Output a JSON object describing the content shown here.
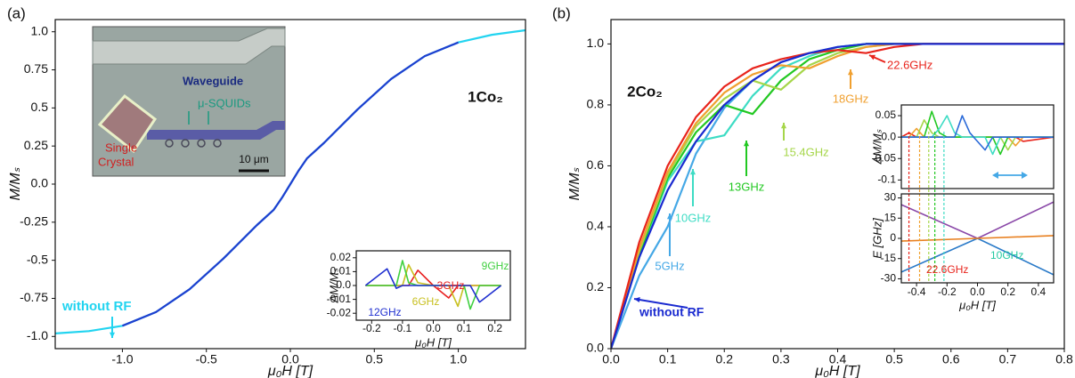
{
  "photo": {
    "labels": [
      "Waveguide",
      "μ-SQUIDs",
      "Single",
      "Crystal"
    ],
    "scale_bar": "10 μm"
  },
  "chart_data": [
    {
      "type": "line",
      "panel_label": "(a)",
      "annotations": [
        "1Co₂"
      ],
      "xlabel": "μ₀H [T]",
      "ylabel": "M/Mₛ",
      "xlim": [
        -1.4,
        1.4
      ],
      "ylim": [
        -1.08,
        1.08
      ],
      "xticks": [
        {
          "value": -1,
          "label": "-1.0"
        },
        -0.5,
        {
          "value": 0,
          "label": "0.0"
        },
        0.5,
        {
          "value": 1,
          "label": "1.0"
        }
      ],
      "yticks": [
        {
          "value": 1,
          "label": "1.0"
        },
        0.75,
        0.5,
        0.25,
        {
          "value": 0,
          "label": "0.0"
        },
        -0.25,
        -0.5,
        -0.75,
        {
          "value": -1,
          "label": "-1.0"
        }
      ],
      "series": [
        {
          "name": "without RF",
          "color": "#22d4f0",
          "x": [
            -1.4,
            -1.2,
            -1.0,
            -0.8,
            -0.6,
            -0.4,
            -0.2,
            -0.1,
            -0.05,
            0,
            0.05,
            0.1,
            0.2,
            0.4,
            0.6,
            0.8,
            1.0,
            1.2,
            1.4
          ],
          "values": [
            -0.98,
            -0.965,
            -0.93,
            -0.84,
            -0.69,
            -0.49,
            -0.27,
            -0.17,
            -0.09,
            0,
            0.09,
            0.17,
            0.27,
            0.49,
            0.69,
            0.84,
            0.93,
            0.98,
            1.01
          ]
        },
        {
          "color": "#1f3fcf",
          "x": [
            -1.0,
            -0.8,
            -0.6,
            -0.4,
            -0.2,
            -0.1,
            -0.05,
            0,
            0.05,
            0.1,
            0.2,
            0.4,
            0.6,
            0.8,
            1.0
          ],
          "values": [
            -0.93,
            -0.84,
            -0.69,
            -0.49,
            -0.27,
            -0.17,
            -0.09,
            0,
            0.09,
            0.17,
            0.27,
            0.49,
            0.69,
            0.84,
            0.93
          ]
        }
      ]
    },
    {
      "type": "line",
      "xlabel": "μ₀H [T]",
      "ylabel": "ΔM/Mₛ",
      "xlim": [
        -0.25,
        0.25
      ],
      "ylim": [
        -0.025,
        0.025
      ],
      "xticks": [
        -0.2,
        -0.1,
        {
          "value": 0,
          "label": "0.0"
        },
        0.1,
        0.2
      ],
      "yticks": [
        0.02,
        0.01,
        {
          "value": 0,
          "label": "0.0"
        },
        -0.01,
        -0.02
      ],
      "x": [
        -0.22,
        -0.15,
        -0.12,
        -0.1,
        -0.08,
        -0.05,
        0,
        0.05,
        0.08,
        0.1,
        0.12,
        0.15,
        0.22
      ],
      "series": [
        {
          "name": "3GHz",
          "color": "#e82020",
          "values": [
            0,
            0,
            0,
            0,
            0,
            0.011,
            0,
            -0.009,
            0,
            0,
            0,
            0,
            0
          ]
        },
        {
          "name": "6GHz",
          "color": "#c8c020",
          "values": [
            0,
            0,
            0,
            0,
            0.015,
            0.002,
            0,
            0,
            -0.015,
            0,
            0,
            0,
            0
          ]
        },
        {
          "name": "9GHz",
          "color": "#40d040",
          "values": [
            0,
            0,
            0,
            0.018,
            0.002,
            0,
            0,
            0,
            0,
            0,
            -0.017,
            0,
            0
          ]
        },
        {
          "name": "12GHz",
          "color": "#2030d0",
          "values": [
            0,
            0.012,
            -0.002,
            0,
            0,
            0,
            0,
            0,
            0,
            0,
            0,
            -0.012,
            0
          ]
        }
      ]
    },
    {
      "type": "line",
      "panel_label": "(b)",
      "annotations": [
        "2Co₂"
      ],
      "xlabel": "μ₀H [T]",
      "ylabel": "M/Mₛ",
      "xlim": [
        0,
        0.8
      ],
      "ylim": [
        0,
        1.08
      ],
      "xticks": [
        {
          "value": 0,
          "label": "0.0"
        },
        0.1,
        0.2,
        0.3,
        0.4,
        0.5,
        0.6,
        0.7,
        0.8
      ],
      "yticks": [
        {
          "value": 0,
          "label": "0.0"
        },
        0.2,
        0.4,
        0.6,
        0.8,
        {
          "value": 1,
          "label": "1.0"
        }
      ],
      "x": [
        0,
        0.05,
        0.1,
        0.15,
        0.2,
        0.25,
        0.3,
        0.35,
        0.4,
        0.45,
        0.5,
        0.55,
        0.6,
        0.7,
        0.8
      ],
      "series": [
        {
          "name": "5GHz",
          "color": "#45a8e6",
          "values": [
            0,
            0.24,
            0.4,
            0.64,
            0.79,
            0.88,
            0.94,
            0.97,
            0.99,
            1.0,
            1.0,
            1.0,
            1.0,
            1.0,
            1.0
          ]
        },
        {
          "name": "10GHz",
          "color": "#3ddcc4",
          "values": [
            0,
            0.3,
            0.55,
            0.68,
            0.7,
            0.83,
            0.92,
            0.96,
            0.99,
            1.0,
            1.0,
            1.0,
            1.0,
            1.0,
            1.0
          ]
        },
        {
          "name": "13GHz",
          "color": "#22c822",
          "values": [
            0,
            0.31,
            0.56,
            0.71,
            0.8,
            0.77,
            0.88,
            0.95,
            0.98,
            1.0,
            1.0,
            1.0,
            1.0,
            1.0,
            1.0
          ]
        },
        {
          "name": "15.4GHz",
          "color": "#a6d64a",
          "values": [
            0,
            0.32,
            0.57,
            0.73,
            0.82,
            0.88,
            0.85,
            0.93,
            0.97,
            0.99,
            1.0,
            1.0,
            1.0,
            1.0,
            1.0
          ]
        },
        {
          "name": "18GHz",
          "color": "#f0a030",
          "values": [
            0,
            0.33,
            0.58,
            0.74,
            0.84,
            0.9,
            0.93,
            0.92,
            0.96,
            0.99,
            1.0,
            1.0,
            1.0,
            1.0,
            1.0
          ]
        },
        {
          "name": "22.6GHz",
          "color": "#e8241c",
          "values": [
            0,
            0.35,
            0.6,
            0.76,
            0.86,
            0.92,
            0.95,
            0.97,
            0.98,
            0.97,
            0.99,
            1.0,
            1.0,
            1.0,
            1.0
          ]
        },
        {
          "name": "without RF",
          "color": "#1a2ad0",
          "values": [
            0,
            0.3,
            0.52,
            0.68,
            0.8,
            0.88,
            0.94,
            0.97,
            0.99,
            1.0,
            1.0,
            1.0,
            1.0,
            1.0,
            1.0
          ]
        }
      ]
    },
    {
      "type": "line",
      "ylabel": "ΔM/Mₛ",
      "xlim": [
        -0.5,
        0.5
      ],
      "ylim": [
        -0.12,
        0.075
      ],
      "yticks": [
        0.05,
        {
          "value": 0,
          "label": "0.0"
        },
        -0.05,
        -0.1
      ],
      "x": [
        -0.5,
        -0.45,
        -0.4,
        -0.35,
        -0.3,
        -0.25,
        -0.2,
        -0.15,
        -0.1,
        -0.05,
        0,
        0.05,
        0.1,
        0.15,
        0.2,
        0.25,
        0.3,
        0.5
      ],
      "series": [
        {
          "color": "#e8241c",
          "values": [
            0,
            0.01,
            0,
            0,
            0,
            0,
            0,
            0,
            0,
            0,
            0,
            0,
            0,
            0,
            0,
            0,
            -0.01,
            0
          ]
        },
        {
          "color": "#f0a030",
          "values": [
            0,
            0,
            0.02,
            0,
            0,
            0,
            0,
            0,
            0,
            0,
            0,
            0,
            0,
            0,
            0,
            -0.02,
            0,
            0
          ]
        },
        {
          "color": "#a6d64a",
          "values": [
            0,
            0,
            0,
            0.04,
            0.01,
            0,
            0,
            0,
            0,
            0,
            0,
            0,
            0,
            0,
            -0.03,
            0,
            0,
            0
          ]
        },
        {
          "color": "#22c822",
          "values": [
            0,
            0,
            0,
            0,
            0.06,
            0.01,
            0,
            0,
            0,
            0,
            0,
            0,
            0,
            -0.04,
            0,
            0,
            0,
            0
          ]
        },
        {
          "color": "#3ddcc4",
          "values": [
            0,
            0,
            0,
            0,
            0,
            0.02,
            0.05,
            0.01,
            0,
            0,
            0,
            0,
            -0.04,
            0,
            0,
            0,
            0,
            0
          ]
        },
        {
          "color": "#2a6ad8",
          "values": [
            0,
            0,
            0,
            0,
            0,
            0,
            0,
            0,
            0.05,
            0.01,
            -0.01,
            -0.03,
            0,
            0,
            0,
            0,
            0,
            0
          ]
        }
      ]
    },
    {
      "type": "line",
      "annotations": [
        "10GHz",
        "22.6GHz"
      ],
      "xlabel": "μ₀H [T]",
      "ylabel": "E [GHz]",
      "xlim": [
        -0.5,
        0.5
      ],
      "ylim": [
        -33,
        33
      ],
      "xticks": [
        -0.4,
        -0.2,
        {
          "value": 0,
          "label": "0.0"
        },
        0.2,
        0.4
      ],
      "yticks": [
        30,
        15,
        0,
        -15,
        -30
      ],
      "x": [
        -0.5,
        0,
        0.5
      ],
      "vlines": {
        "x": [
          -0.45,
          -0.38,
          -0.32,
          -0.28,
          -0.22
        ],
        "colors": [
          "#e8241c",
          "#f0a030",
          "#a6d64a",
          "#22c822",
          "#3ddcc4"
        ]
      },
      "series": [
        {
          "color": "#8a48a8",
          "values": [
            25,
            0,
            27
          ]
        },
        {
          "color": "#2a7ac8",
          "values": [
            -25,
            0,
            -27
          ]
        },
        {
          "color": "#e88020",
          "values": [
            -2,
            0,
            2
          ]
        }
      ]
    }
  ]
}
